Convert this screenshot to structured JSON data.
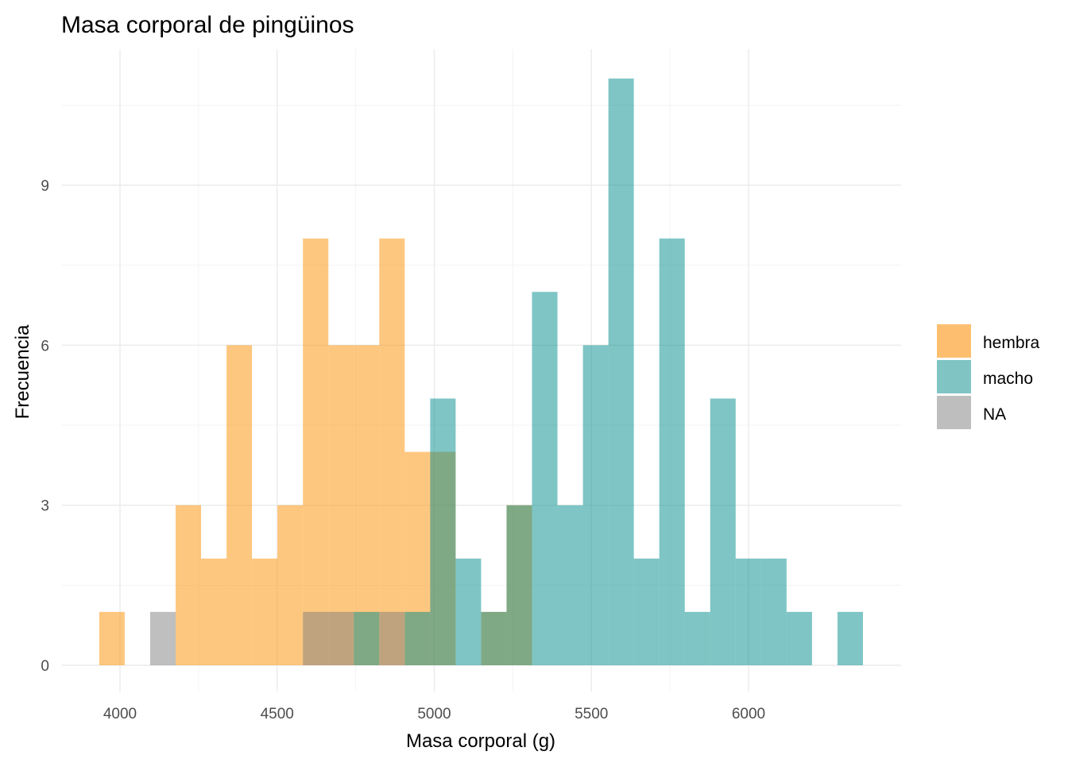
{
  "chart_data": {
    "type": "bar",
    "subtype": "overlapping histogram",
    "title": "Masa corporal de pingüinos",
    "xlabel": "Masa corporal (g)",
    "ylabel": "Frecuencia",
    "xlim": [
      3850,
      6400
    ],
    "ylim": [
      -0.8,
      11.5
    ],
    "x_ticks": [
      4000,
      4500,
      5000,
      5500,
      6000
    ],
    "x_tick_labels": [
      "4000",
      "4500",
      "5000",
      "5500",
      "6000"
    ],
    "y_ticks": [
      0,
      3,
      6,
      9
    ],
    "y_tick_labels": [
      "0",
      "3",
      "6",
      "9"
    ],
    "grid": true,
    "legend_position": "right",
    "bin_width": 81,
    "bin_start": 3934,
    "series": [
      {
        "name": "hembra",
        "color": "#FDBF6F",
        "counts": [
          1,
          0,
          0,
          3,
          2,
          6,
          2,
          3,
          8,
          6,
          6,
          8,
          4,
          4,
          0,
          1,
          3,
          0,
          0,
          0,
          0,
          0,
          0,
          0,
          0,
          0,
          0,
          0,
          0,
          0
        ]
      },
      {
        "name": "macho",
        "color": "#80C4C4",
        "counts": [
          0,
          0,
          0,
          0,
          0,
          0,
          0,
          0,
          0,
          0,
          1,
          0,
          1,
          5,
          2,
          1,
          3,
          7,
          3,
          6,
          11,
          2,
          8,
          1,
          5,
          2,
          2,
          1,
          0,
          1
        ]
      },
      {
        "name": "NA",
        "color": "#BEBEBE",
        "counts": [
          0,
          0,
          1,
          0,
          0,
          0,
          0,
          0,
          1,
          1,
          0,
          1,
          0,
          0,
          0,
          0,
          0,
          0,
          0,
          0,
          0,
          0,
          0,
          0,
          0,
          0,
          0,
          0,
          0,
          0
        ]
      }
    ]
  }
}
